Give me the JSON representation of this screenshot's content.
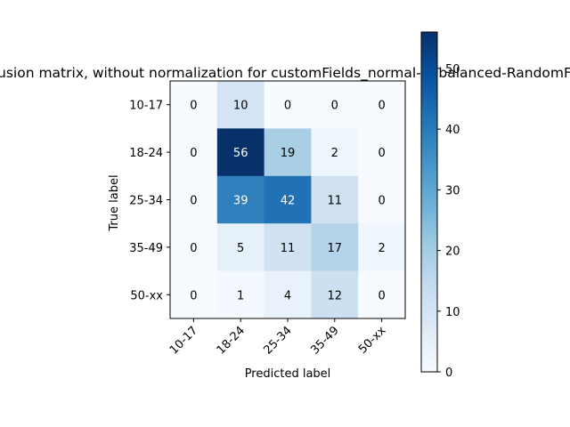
{
  "chart_data": {
    "type": "heatmap",
    "title": "Confusion matrix, without normalization for customFields_normal-unbalanced-RandomForest",
    "xlabel": "Predicted label",
    "ylabel": "True label",
    "x_categories": [
      "10-17",
      "18-24",
      "25-34",
      "35-49",
      "50-xx"
    ],
    "y_categories": [
      "10-17",
      "18-24",
      "25-34",
      "35-49",
      "50-xx"
    ],
    "values": [
      [
        0,
        10,
        0,
        0,
        0
      ],
      [
        0,
        56,
        19,
        2,
        0
      ],
      [
        0,
        39,
        42,
        11,
        0
      ],
      [
        0,
        5,
        11,
        17,
        2
      ],
      [
        0,
        1,
        4,
        12,
        0
      ]
    ],
    "colormap": "Blues",
    "colorbar": {
      "min": 0,
      "max": 56,
      "ticks": [
        0,
        10,
        20,
        30,
        40,
        50
      ]
    }
  }
}
